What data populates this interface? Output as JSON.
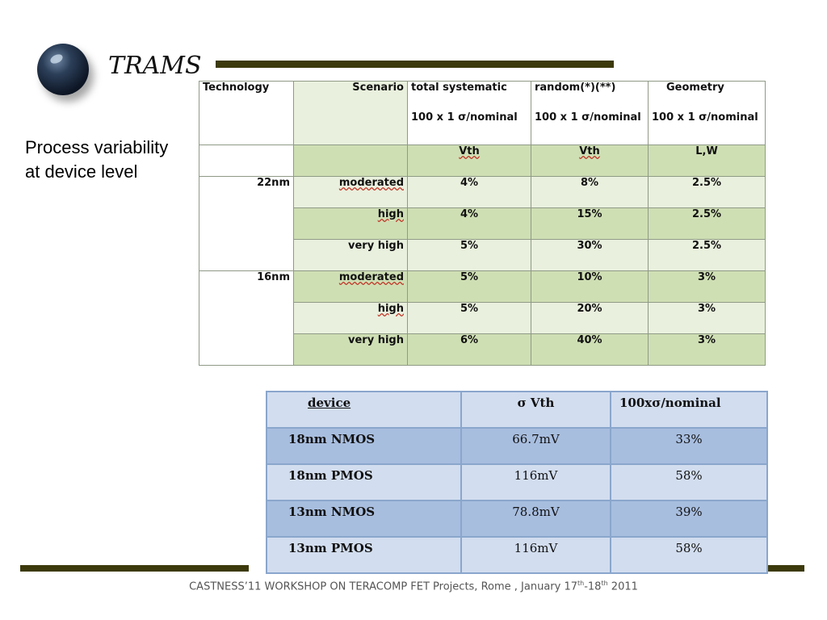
{
  "logo": {
    "text": "TRAMS"
  },
  "side_title": {
    "line1": "Process variability",
    "line2": "at device level"
  },
  "table1": {
    "header": {
      "col1": "Technology",
      "col2": "Scenario",
      "col3_a": "total systematic",
      "col3_b": "100 x 1 σ/nominal",
      "col4_a": "random(*)(**)",
      "col4_b": "100 x 1 σ/nominal",
      "col5_a": "Geometry",
      "col5_b": "100 x 1 σ/nominal"
    },
    "units": {
      "col3": "Vth",
      "col4": "Vth",
      "col5": "L,W"
    },
    "rows": [
      {
        "tech": "22nm",
        "scenario": "moderated",
        "systematic": "4%",
        "random": "8%",
        "geometry": "2.5%"
      },
      {
        "tech": "",
        "scenario": "high",
        "systematic": "4%",
        "random": "15%",
        "geometry": "2.5%"
      },
      {
        "tech": "",
        "scenario": "very high",
        "systematic": "5%",
        "random": "30%",
        "geometry": "2.5%"
      },
      {
        "tech": "16nm",
        "scenario": "moderated",
        "systematic": "5%",
        "random": "10%",
        "geometry": "3%"
      },
      {
        "tech": "",
        "scenario": "high",
        "systematic": "5%",
        "random": "20%",
        "geometry": "3%"
      },
      {
        "tech": "",
        "scenario": "very high",
        "systematic": "6%",
        "random": "40%",
        "geometry": "3%"
      }
    ]
  },
  "table2": {
    "header": {
      "col1": "device",
      "col2": "σ Vth",
      "col3": "100xσ/nominal"
    },
    "rows": [
      {
        "device": "18nm NMOS",
        "sigma_vth": "66.7mV",
        "pct": "33%"
      },
      {
        "device": "18nm PMOS",
        "sigma_vth": "116mV",
        "pct": "58%"
      },
      {
        "device": "13nm NMOS",
        "sigma_vth": "78.8mV",
        "pct": "39%"
      },
      {
        "device": "13nm PMOS",
        "sigma_vth": "116mV",
        "pct": "58%"
      }
    ]
  },
  "footer": {
    "text_a": "CASTNESS’11 WORKSHOP ON TERACOMP  FET Projects, Rome , January 17",
    "sup1": "th",
    "text_b": "-18",
    "sup2": "th",
    "text_c": " 2011"
  },
  "colors": {
    "bar": "#3c3a0c",
    "table1_green": "#cfdfb4",
    "table1_light": "#e9f0dd",
    "table2_dark": "#a8bedf",
    "table2_light": "#d2ddef"
  }
}
